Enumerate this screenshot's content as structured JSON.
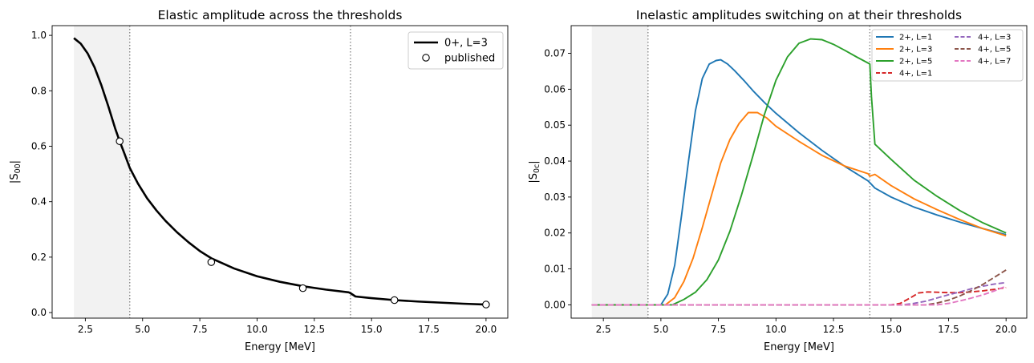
{
  "chart_data": [
    {
      "type": "line",
      "title": "Elastic amplitude across the thresholds",
      "xlabel": "Energy [MeV]",
      "ylabel": "|S00|",
      "ylabel_main": "|S",
      "ylabel_sub": "00",
      "ylabel_close": "|",
      "xlim": [
        1.05,
        20.95
      ],
      "ylim": [
        -0.02,
        1.035
      ],
      "xticks": [
        2.5,
        5.0,
        7.5,
        10.0,
        12.5,
        15.0,
        17.5,
        20.0
      ],
      "xtick_labels": [
        "2.5",
        "5.0",
        "7.5",
        "10.0",
        "12.5",
        "15.0",
        "17.5",
        "20.0"
      ],
      "yticks": [
        0.0,
        0.2,
        0.4,
        0.6,
        0.8,
        1.0
      ],
      "ytick_labels": [
        "0.0",
        "0.2",
        "0.4",
        "0.6",
        "0.8",
        "1.0"
      ],
      "shaded_region": [
        2.0,
        4.44
      ],
      "threshold_lines": [
        4.44,
        14.08
      ],
      "legend_position": "upper right",
      "series": [
        {
          "name": "0+, L=3",
          "color": "#000000",
          "style": "solid",
          "x": [
            2.0,
            2.3,
            2.6,
            2.9,
            3.2,
            3.5,
            3.8,
            4.0,
            4.2,
            4.44,
            4.8,
            5.2,
            5.6,
            6.0,
            6.5,
            7.0,
            7.5,
            8.0,
            9.0,
            10.0,
            11.0,
            12.0,
            13.0,
            14.0,
            14.08,
            14.3,
            15.0,
            16.0,
            17.0,
            18.0,
            19.0,
            20.0
          ],
          "y": [
            0.99,
            0.97,
            0.935,
            0.885,
            0.82,
            0.745,
            0.665,
            0.618,
            0.575,
            0.522,
            0.465,
            0.412,
            0.369,
            0.331,
            0.29,
            0.254,
            0.222,
            0.196,
            0.159,
            0.131,
            0.111,
            0.095,
            0.083,
            0.073,
            0.07,
            0.058,
            0.052,
            0.045,
            0.04,
            0.036,
            0.032,
            0.029
          ]
        },
        {
          "name": "published",
          "color": "#000000",
          "style": "marker",
          "x": [
            4.0,
            8.0,
            12.0,
            16.0,
            20.0
          ],
          "y": [
            0.618,
            0.182,
            0.088,
            0.045,
            0.029
          ]
        }
      ]
    },
    {
      "type": "line",
      "title": "Inelastic amplitudes switching on at their thresholds",
      "xlabel": "Energy [MeV]",
      "ylabel": "|S0c|",
      "ylabel_main": "|S",
      "ylabel_sub": "0c",
      "ylabel_close": "|",
      "xlim": [
        1.1,
        20.9
      ],
      "ylim": [
        -0.0037,
        0.0777
      ],
      "xticks": [
        2.5,
        5.0,
        7.5,
        10.0,
        12.5,
        15.0,
        17.5,
        20.0
      ],
      "xtick_labels": [
        "2.5",
        "5.0",
        "7.5",
        "10.0",
        "12.5",
        "15.0",
        "17.5",
        "20.0"
      ],
      "yticks": [
        0.0,
        0.01,
        0.02,
        0.03,
        0.04,
        0.05,
        0.06,
        0.07
      ],
      "ytick_labels": [
        "0.00",
        "0.01",
        "0.02",
        "0.03",
        "0.04",
        "0.05",
        "0.06",
        "0.07"
      ],
      "shaded_region": [
        2.0,
        4.44
      ],
      "threshold_lines": [
        4.44,
        14.08
      ],
      "legend_position": "upper right",
      "legend_columns": 2,
      "series": [
        {
          "name": "2+, L=1",
          "color": "#1f77b4",
          "style": "solid",
          "x": [
            2.0,
            5.0,
            5.3,
            5.6,
            5.9,
            6.2,
            6.5,
            6.8,
            7.1,
            7.4,
            7.6,
            7.9,
            8.2,
            8.6,
            9.0,
            9.5,
            10.0,
            11.0,
            12.0,
            13.0,
            14.0,
            14.08,
            14.3,
            15.0,
            16.0,
            17.0,
            18.0,
            19.0,
            20.0
          ],
          "y": [
            0.0,
            0.0,
            0.003,
            0.011,
            0.025,
            0.04,
            0.054,
            0.063,
            0.067,
            0.068,
            0.0682,
            0.067,
            0.0652,
            0.0625,
            0.0596,
            0.0563,
            0.0533,
            0.0479,
            0.043,
            0.0385,
            0.0345,
            0.034,
            0.0325,
            0.03,
            0.0272,
            0.025,
            0.023,
            0.0212,
            0.0195
          ]
        },
        {
          "name": "2+, L=3",
          "color": "#ff7f0e",
          "style": "solid",
          "x": [
            2.0,
            5.2,
            5.6,
            6.0,
            6.4,
            6.8,
            7.2,
            7.6,
            8.0,
            8.4,
            8.8,
            9.2,
            9.6,
            10.0,
            11.0,
            12.0,
            13.0,
            14.0,
            14.08,
            14.3,
            15.0,
            16.0,
            17.0,
            18.0,
            19.0,
            20.0
          ],
          "y": [
            0.0,
            0.0,
            0.002,
            0.0065,
            0.013,
            0.0215,
            0.0305,
            0.0395,
            0.046,
            0.0505,
            0.0535,
            0.0535,
            0.052,
            0.0497,
            0.0455,
            0.0416,
            0.0386,
            0.0365,
            0.0358,
            0.0363,
            0.0332,
            0.0295,
            0.0265,
            0.0237,
            0.0212,
            0.0192
          ]
        },
        {
          "name": "2+, L=5",
          "color": "#2ca02c",
          "style": "solid",
          "x": [
            2.0,
            5.5,
            6.0,
            6.5,
            7.0,
            7.5,
            8.0,
            8.5,
            9.0,
            9.5,
            10.0,
            10.5,
            11.0,
            11.5,
            12.0,
            12.5,
            13.0,
            13.5,
            14.0,
            14.08,
            14.15,
            14.3,
            15.0,
            16.0,
            17.0,
            18.0,
            19.0,
            20.0
          ],
          "y": [
            0.0,
            0.0,
            0.0015,
            0.0035,
            0.007,
            0.0125,
            0.0205,
            0.0305,
            0.0415,
            0.053,
            0.0625,
            0.069,
            0.0728,
            0.074,
            0.0738,
            0.0725,
            0.0708,
            0.069,
            0.0673,
            0.067,
            0.058,
            0.0447,
            0.0405,
            0.0347,
            0.0302,
            0.0262,
            0.0228,
            0.02
          ]
        },
        {
          "name": "4+, L=1",
          "color": "#d62728",
          "style": "dashed",
          "x": [
            2.0,
            15.0,
            15.4,
            15.8,
            16.2,
            16.6,
            17.0,
            17.5,
            18.0,
            18.5,
            19.0,
            19.5,
            20.0
          ],
          "y": [
            0.0,
            0.0,
            0.0004,
            0.0018,
            0.0033,
            0.0036,
            0.0035,
            0.0034,
            0.0034,
            0.0036,
            0.0039,
            0.0043,
            0.0048
          ]
        },
        {
          "name": "4+, L=3",
          "color": "#9467bd",
          "style": "dashed",
          "x": [
            2.0,
            15.5,
            16.0,
            16.5,
            17.0,
            17.5,
            18.0,
            18.5,
            19.0,
            19.5,
            20.0
          ],
          "y": [
            0.0,
            0.0,
            0.0004,
            0.001,
            0.0019,
            0.0028,
            0.0036,
            0.0045,
            0.0052,
            0.0058,
            0.0062
          ]
        },
        {
          "name": "4+, L=5",
          "color": "#8c564b",
          "style": "dashed",
          "x": [
            2.0,
            16.5,
            17.0,
            17.5,
            18.0,
            18.5,
            19.0,
            19.5,
            20.0
          ],
          "y": [
            0.0,
            0.0,
            0.0005,
            0.0013,
            0.0025,
            0.004,
            0.0057,
            0.0077,
            0.0097
          ]
        },
        {
          "name": "4+, L=7",
          "color": "#e377c2",
          "style": "dashed",
          "x": [
            2.0,
            17.0,
            17.5,
            18.0,
            18.5,
            19.0,
            19.5,
            20.0
          ],
          "y": [
            0.0,
            0.0,
            0.0004,
            0.0011,
            0.0019,
            0.0028,
            0.0039,
            0.0052
          ]
        }
      ]
    }
  ]
}
